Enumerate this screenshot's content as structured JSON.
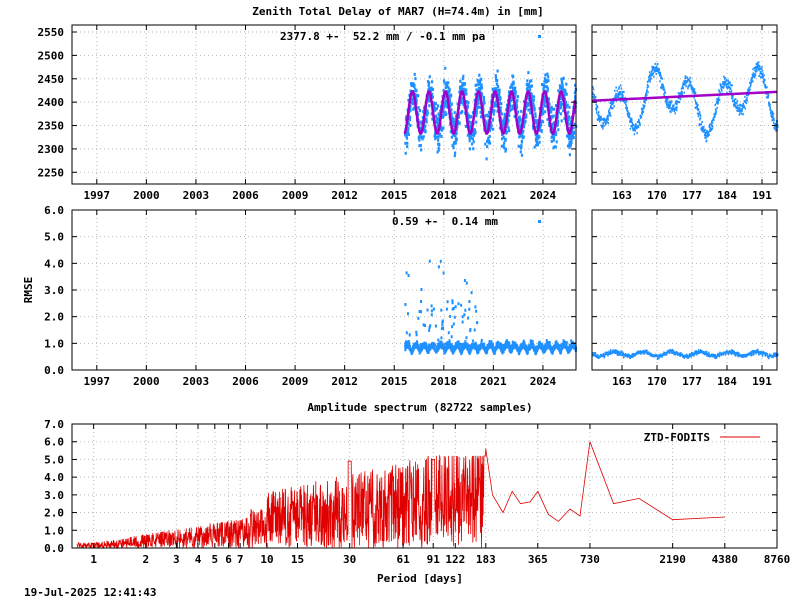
{
  "header": {
    "main_title": "Zenith Total Delay of MAR7 (H=74.4m) in [mm]",
    "ztd_stat": "2377.8 +-  52.2 mm / -0.1 mm pa",
    "rmse_stat": "0.59 +-  0.14 mm",
    "rmse_ylabel": "RMSE",
    "spectrum_title": "Amplitude spectrum (82722 samples)",
    "spectrum_xlabel": "Period [days]",
    "timestamp": "19-Jul-2025 12:41:43"
  },
  "colors": {
    "ztd": "#1e90ff",
    "model": "#a000c8",
    "spectrum": "#e00000"
  },
  "chart_data": [
    {
      "type": "scatter",
      "id": "ztd-long",
      "title": "Zenith Total Delay of MAR7 (H=74.4m) in [mm]",
      "x_ticks": [
        "1997",
        "2000",
        "2003",
        "2006",
        "2009",
        "2012",
        "2015",
        "2018",
        "2021",
        "2024"
      ],
      "xlim": [
        1995.5,
        2026
      ],
      "y_ticks": [
        "2250",
        "2300",
        "2350",
        "2400",
        "2450",
        "2500",
        "2550"
      ],
      "ylim": [
        2225,
        2565
      ],
      "annotation": "2377.8 +-  52.2 mm / -0.1 mm pa",
      "data_start": 2015.6,
      "data_end": 2025.95,
      "mean": 2377.8,
      "annual_amplitude": 45,
      "scatter_amplitude": 65
    },
    {
      "type": "scatter",
      "id": "ztd-recent",
      "x_ticks": [
        "163",
        "170",
        "177",
        "184",
        "191"
      ],
      "xlim": [
        157,
        194
      ],
      "ylim": [
        2225,
        2565
      ],
      "model_start": 2403,
      "model_end": 2422
    },
    {
      "type": "scatter",
      "id": "rmse-long",
      "ylabel": "RMSE",
      "x_ticks": [
        "1997",
        "2000",
        "2003",
        "2006",
        "2009",
        "2012",
        "2015",
        "2018",
        "2021",
        "2024"
      ],
      "xlim": [
        1995.5,
        2026
      ],
      "y_ticks": [
        "0.0",
        "1.0",
        "2.0",
        "3.0",
        "4.0",
        "5.0",
        "6.0"
      ],
      "ylim": [
        0,
        6
      ],
      "annotation": "0.59 +-  0.14 mm",
      "typical": 0.6,
      "outlier_max": 4.2
    },
    {
      "type": "scatter",
      "id": "rmse-recent",
      "x_ticks": [
        "163",
        "170",
        "177",
        "184",
        "191"
      ],
      "xlim": [
        157,
        194
      ],
      "ylim": [
        0,
        6
      ],
      "typical": 0.6
    },
    {
      "type": "line",
      "id": "amplitude-spectrum",
      "title": "Amplitude spectrum (82722 samples)",
      "xlabel": "Period [days]",
      "x_scale": "log",
      "x_ticks": [
        "1",
        "2",
        "3",
        "4",
        "5",
        "6",
        "7",
        "10",
        "15",
        "30",
        "61",
        "91",
        "122",
        "183",
        "365",
        "730",
        "2190",
        "4380",
        "8760"
      ],
      "xlim": [
        0.75,
        8760
      ],
      "y_ticks": [
        "0.0",
        "1.0",
        "2.0",
        "3.0",
        "4.0",
        "5.0",
        "6.0",
        "7.0"
      ],
      "ylim": [
        0,
        7
      ],
      "legend": "ZTD-FODITS",
      "legend_position": "top-right",
      "peaks": [
        {
          "period": 30,
          "amplitude": 4.9
        },
        {
          "period": 91,
          "amplitude": 5.0
        },
        {
          "period": 183,
          "amplitude": 5.6
        },
        {
          "period": 365,
          "amplitude": 3.2
        },
        {
          "period": 730,
          "amplitude": 6.0
        }
      ],
      "tail": [
        {
          "period": 1000,
          "amplitude": 2.5
        },
        {
          "period": 1400,
          "amplitude": 2.8
        },
        {
          "period": 2190,
          "amplitude": 1.6
        },
        {
          "period": 4380,
          "amplitude": 1.75
        }
      ]
    }
  ]
}
